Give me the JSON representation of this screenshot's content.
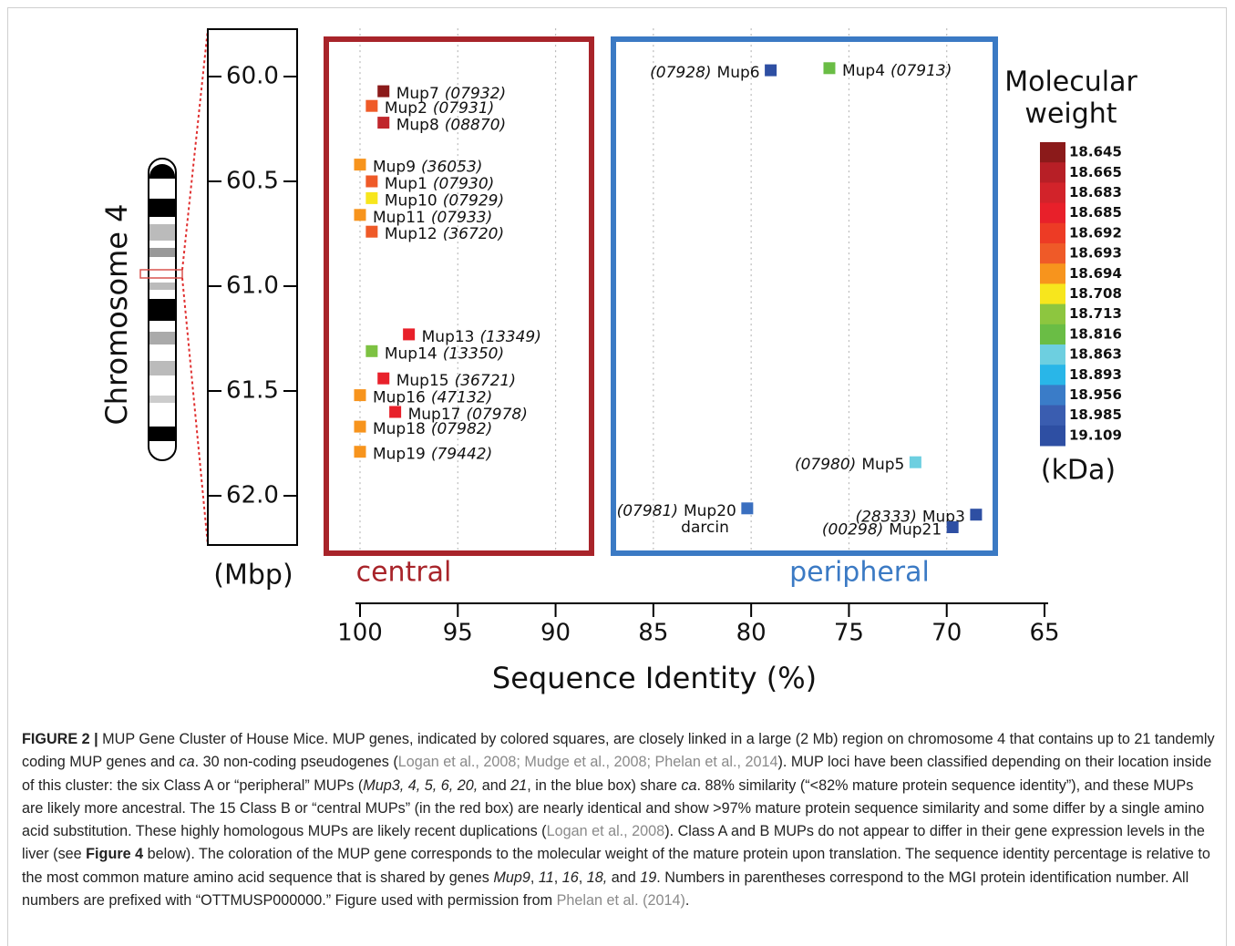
{
  "chart_data": {
    "type": "scatter",
    "xlabel": "Sequence Identity (%)",
    "ylabel": "(Mbp)",
    "chromosome_label": "Chromosome 4",
    "group_labels": [
      "central",
      "peripheral"
    ],
    "xlim": [
      100.2,
      64.8
    ],
    "xticks": [
      100,
      95,
      90,
      85,
      80,
      75,
      70,
      65
    ],
    "ylim": [
      59.77,
      62.24
    ],
    "yticks": [
      {
        "value": 60,
        "label": "60.0"
      },
      {
        "value": 60.5,
        "label": "60.5"
      },
      {
        "value": 61,
        "label": "61.0"
      },
      {
        "value": 61.5,
        "label": "61.5"
      },
      {
        "value": 62,
        "label": "62.0"
      }
    ],
    "grid": true,
    "points": [
      {
        "name": "Mup7",
        "id": "(07932)",
        "x": 98.8,
        "y": 60.07,
        "color": "#8b1a1a"
      },
      {
        "name": "Mup2",
        "id": "(07931)",
        "x": 99.4,
        "y": 60.14,
        "color": "#ef5a28"
      },
      {
        "name": "Mup8",
        "id": "(08870)",
        "x": 98.8,
        "y": 60.22,
        "color": "#c0262c"
      },
      {
        "name": "Mup9",
        "id": "(36053)",
        "x": 100,
        "y": 60.42,
        "color": "#f7941d"
      },
      {
        "name": "Mup1",
        "id": "(07930)",
        "x": 99.4,
        "y": 60.5,
        "color": "#ef5a28"
      },
      {
        "name": "Mup10",
        "id": "(07929)",
        "x": 99.4,
        "y": 60.58,
        "color": "#f7e61d"
      },
      {
        "name": "Mup11",
        "id": "(07933)",
        "x": 100,
        "y": 60.66,
        "color": "#f7941d"
      },
      {
        "name": "Mup12",
        "id": "(36720)",
        "x": 99.4,
        "y": 60.74,
        "color": "#ef5a28"
      },
      {
        "name": "Mup13",
        "id": "(13349)",
        "x": 97.5,
        "y": 61.23,
        "color": "#e8202a"
      },
      {
        "name": "Mup14",
        "id": "(13350)",
        "x": 99.4,
        "y": 61.31,
        "color": "#7dc242"
      },
      {
        "name": "Mup15",
        "id": "(36721)",
        "x": 98.8,
        "y": 61.44,
        "color": "#e8202a"
      },
      {
        "name": "Mup16",
        "id": "(47132)",
        "x": 100,
        "y": 61.52,
        "color": "#f7941d"
      },
      {
        "name": "Mup17",
        "id": "(07978)",
        "x": 98.2,
        "y": 61.6,
        "color": "#e8202a"
      },
      {
        "name": "Mup18",
        "id": "(07982)",
        "x": 100,
        "y": 61.67,
        "color": "#f7941d"
      },
      {
        "name": "Mup19",
        "id": "(79442)",
        "x": 100,
        "y": 61.79,
        "color": "#f7941d"
      },
      {
        "name": "Mup6",
        "id": "(07928)",
        "x": 79.0,
        "y": 59.97,
        "color": "#2e4fa3"
      },
      {
        "name": "Mup4",
        "id": "(07913)",
        "x": 76.0,
        "y": 59.96,
        "color": "#6abd45"
      },
      {
        "name": "Mup5",
        "id": "(07980)",
        "x": 71.6,
        "y": 61.84,
        "color": "#6dcfe0"
      },
      {
        "name": "Mup20",
        "id": "(07981)",
        "x": 80.2,
        "y": 62.06,
        "color": "#3a6fc0",
        "alias": "darcin"
      },
      {
        "name": "Mup3",
        "id": "(28333)",
        "x": 68.5,
        "y": 62.09,
        "color": "#2e4fa3"
      },
      {
        "name": "Mup21",
        "id": "(00298)",
        "x": 69.7,
        "y": 62.15,
        "color": "#2e4fa3"
      }
    ],
    "legend": {
      "title": [
        "Molecular",
        "weight"
      ],
      "unit": "(kDa)",
      "entries": [
        {
          "label": "18.645",
          "color": "#8b1a1a"
        },
        {
          "label": "18.665",
          "color": "#b71f26"
        },
        {
          "label": "18.683",
          "color": "#d2232a"
        },
        {
          "label": "18.685",
          "color": "#e8202a"
        },
        {
          "label": "18.692",
          "color": "#ed3b25"
        },
        {
          "label": "18.693",
          "color": "#ef5a28"
        },
        {
          "label": "18.694",
          "color": "#f7941d"
        },
        {
          "label": "18.708",
          "color": "#f7e61d"
        },
        {
          "label": "18.713",
          "color": "#8dc63f"
        },
        {
          "label": "18.816",
          "color": "#6abd45"
        },
        {
          "label": "18.863",
          "color": "#6dcfe0"
        },
        {
          "label": "18.893",
          "color": "#29b6e8"
        },
        {
          "label": "18.956",
          "color": "#3a7cc8"
        },
        {
          "label": "18.985",
          "color": "#3a5db0"
        },
        {
          "label": "19.109",
          "color": "#2e4fa3"
        }
      ]
    }
  },
  "caption": [
    {
      "text": "FIGURE 2 |",
      "style": "bold"
    },
    {
      "text": " MUP Gene Cluster of House Mice. MUP genes, indicated by colored squares, are closely linked in a large (2 Mb) region on chromosome 4 that contains up to 21 tandemly coding MUP genes and "
    },
    {
      "text": "ca",
      "style": "italic"
    },
    {
      "text": ". 30 non-coding pseudogenes ("
    },
    {
      "text": "Logan et al., 2008; Mudge et al., 2008; Phelan et al., 2014",
      "style": "link"
    },
    {
      "text": "). MUP loci have been classified depending on their location inside of this cluster: the six Class A or “peripheral” MUPs ("
    },
    {
      "text": "Mup3, 4, 5, 6, 20,",
      "style": "italic"
    },
    {
      "text": " and "
    },
    {
      "text": "21",
      "style": "italic"
    },
    {
      "text": ", in the blue box) share "
    },
    {
      "text": "ca",
      "style": "italic"
    },
    {
      "text": ". 88% similarity (“<82% mature protein sequence identity”), and these MUPs are likely more ancestral. The 15 Class B or “central MUPs” (in the red box) are nearly identical and show >97% mature protein sequence similarity and some differ by a single amino acid substitution. These highly homologous MUPs are likely recent duplications ("
    },
    {
      "text": "Logan et al., 2008",
      "style": "link"
    },
    {
      "text": "). Class A and B MUPs do not appear to differ in their gene expression levels in the liver (see "
    },
    {
      "text": "Figure 4",
      "style": "bold"
    },
    {
      "text": " below). The coloration of the MUP gene corresponds to the molecular weight of the mature protein upon translation. The sequence identity percentage is relative to the most common mature amino acid sequence that is shared by genes "
    },
    {
      "text": "Mup9",
      "style": "italic"
    },
    {
      "text": ", "
    },
    {
      "text": "11",
      "style": "italic"
    },
    {
      "text": ", "
    },
    {
      "text": "16",
      "style": "italic"
    },
    {
      "text": ", "
    },
    {
      "text": "18,",
      "style": "italic"
    },
    {
      "text": " and "
    },
    {
      "text": "19",
      "style": "italic"
    },
    {
      "text": ". Numbers in parentheses correspond to the MGI protein identification number. All numbers are prefixed with “OTTMUSP000000.” Figure used with permission from "
    },
    {
      "text": "Phelan et al. (2014)",
      "style": "link"
    },
    {
      "text": "."
    }
  ]
}
